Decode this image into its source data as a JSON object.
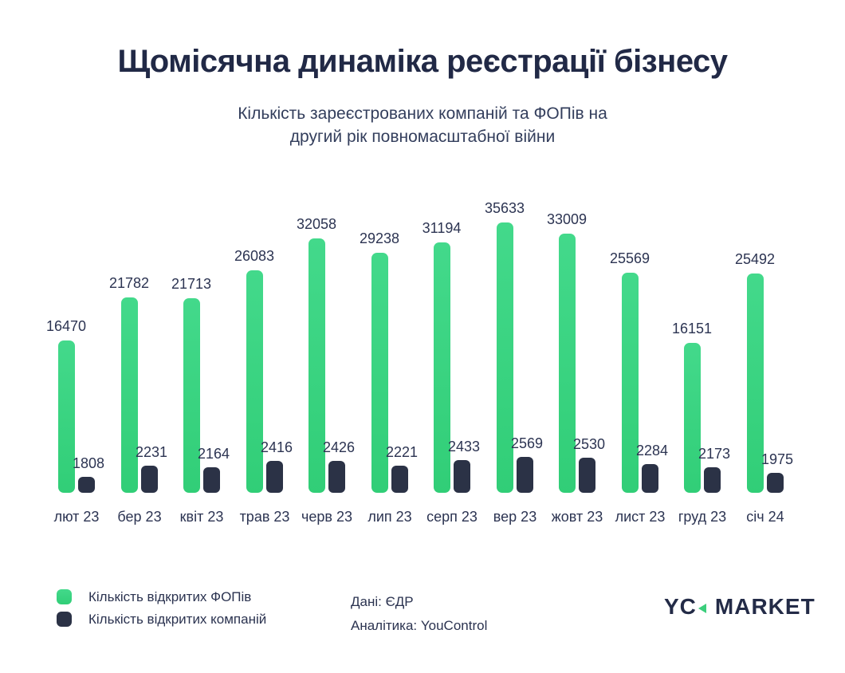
{
  "header": {
    "title": "Щомісячна динаміка реєстрації бізнесу",
    "subtitle_line1": "Кількість зареєстрованих компаній та ФОПів на",
    "subtitle_line2": "другий рік повномасштабної війни"
  },
  "chart_data": {
    "type": "bar",
    "title": "Щомісячна динаміка реєстрації бізнесу",
    "subtitle": "Кількість зареєстрованих компаній та ФОПів на другий рік повномасштабної війни",
    "categories": [
      "лют 23",
      "бер 23",
      "квіт 23",
      "трав 23",
      "черв 23",
      "лип 23",
      "серп 23",
      "вер 23",
      "жовт 23",
      "лист 23",
      "груд 23",
      "січ 24"
    ],
    "series": [
      {
        "name": "Кількість відкритих ФОПів",
        "color": "#38d37f",
        "values": [
          16470,
          21782,
          21713,
          26083,
          32058,
          29238,
          31194,
          35633,
          33009,
          25569,
          16151,
          25492
        ]
      },
      {
        "name": "Кількість відкритих компаній",
        "color": "#2b3246",
        "values": [
          1808,
          2231,
          2164,
          2416,
          2426,
          2221,
          2433,
          2569,
          2530,
          2284,
          2173,
          1975
        ]
      }
    ],
    "data_labels": true,
    "grid": false,
    "axes_shown": false,
    "legend_position": "bottom-left",
    "ylim": [
      0,
      36000
    ]
  },
  "footer": {
    "source_line1": "Дані: ЄДР",
    "source_line2": "Аналітика: YouControl",
    "logo": {
      "part1": "YC",
      "part2": "MARKET",
      "accent_color": "#3bce7c"
    }
  }
}
